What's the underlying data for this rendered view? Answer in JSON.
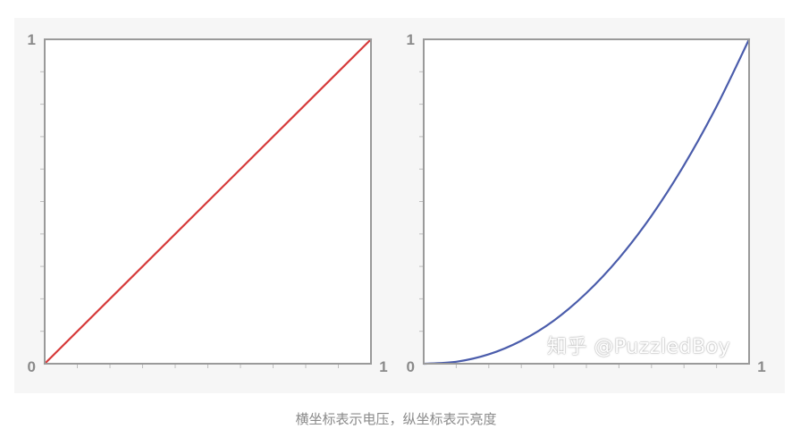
{
  "chart_data": [
    {
      "type": "line",
      "xlim": [
        0,
        1
      ],
      "ylim": [
        0,
        1
      ],
      "tick_labels": {
        "y_top": "1",
        "origin": "0",
        "x_right": "1"
      },
      "grid": false,
      "series": [
        {
          "color": "#d63a3a",
          "x": [
            0,
            1
          ],
          "y": [
            0,
            1
          ]
        }
      ]
    },
    {
      "type": "line",
      "xlim": [
        0,
        1
      ],
      "ylim": [
        0,
        1
      ],
      "tick_labels": {
        "y_top": "1",
        "origin": "0",
        "x_right": "1"
      },
      "grid": false,
      "series": [
        {
          "color": "#4a5cab",
          "x": [
            0,
            0.1,
            0.2,
            0.3,
            0.4,
            0.5,
            0.6,
            0.7,
            0.8,
            0.9,
            1.0
          ],
          "y": [
            0,
            0.006,
            0.029,
            0.071,
            0.133,
            0.218,
            0.325,
            0.456,
            0.612,
            0.793,
            1.0
          ]
        }
      ]
    }
  ],
  "watermark": "知乎 @PuzzledBoy",
  "caption": "横坐标表示电压，纵坐标表示亮度"
}
